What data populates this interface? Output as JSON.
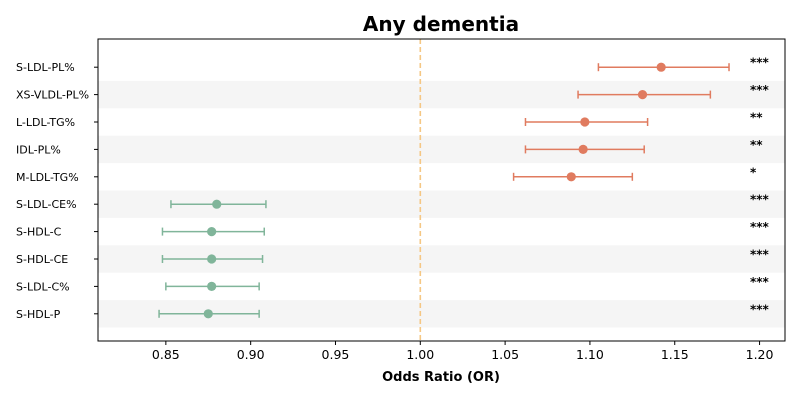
{
  "chart_data": {
    "type": "forest",
    "title": "Any dementia",
    "xlabel": "Odds Ratio (OR)",
    "xlim": [
      0.81,
      1.215
    ],
    "xticks": [
      "0.85",
      "0.90",
      "0.95",
      "1.00",
      "1.05",
      "1.10",
      "1.15",
      "1.20"
    ],
    "reference_line": 1.0,
    "colors": {
      "positive": "#e07b5f",
      "negative": "#80b59a",
      "reference": "#f5c784",
      "band": "#f5f5f5"
    },
    "rows": [
      {
        "label": "S-LDL-PL%",
        "or": 1.142,
        "lo": 1.105,
        "hi": 1.182,
        "sig": "***"
      },
      {
        "label": "XS-VLDL-PL%",
        "or": 1.131,
        "lo": 1.093,
        "hi": 1.171,
        "sig": "***"
      },
      {
        "label": "L-LDL-TG%",
        "or": 1.097,
        "lo": 1.062,
        "hi": 1.134,
        "sig": "**"
      },
      {
        "label": "IDL-PL%",
        "or": 1.096,
        "lo": 1.062,
        "hi": 1.132,
        "sig": "**"
      },
      {
        "label": "M-LDL-TG%",
        "or": 1.089,
        "lo": 1.055,
        "hi": 1.125,
        "sig": "*"
      },
      {
        "label": "S-LDL-CE%",
        "or": 0.88,
        "lo": 0.853,
        "hi": 0.909,
        "sig": "***"
      },
      {
        "label": "S-HDL-C",
        "or": 0.877,
        "lo": 0.848,
        "hi": 0.908,
        "sig": "***"
      },
      {
        "label": "S-HDL-CE",
        "or": 0.877,
        "lo": 0.848,
        "hi": 0.907,
        "sig": "***"
      },
      {
        "label": "S-LDL-C%",
        "or": 0.877,
        "lo": 0.85,
        "hi": 0.905,
        "sig": "***"
      },
      {
        "label": "S-HDL-P",
        "or": 0.875,
        "lo": 0.846,
        "hi": 0.905,
        "sig": "***"
      }
    ]
  }
}
